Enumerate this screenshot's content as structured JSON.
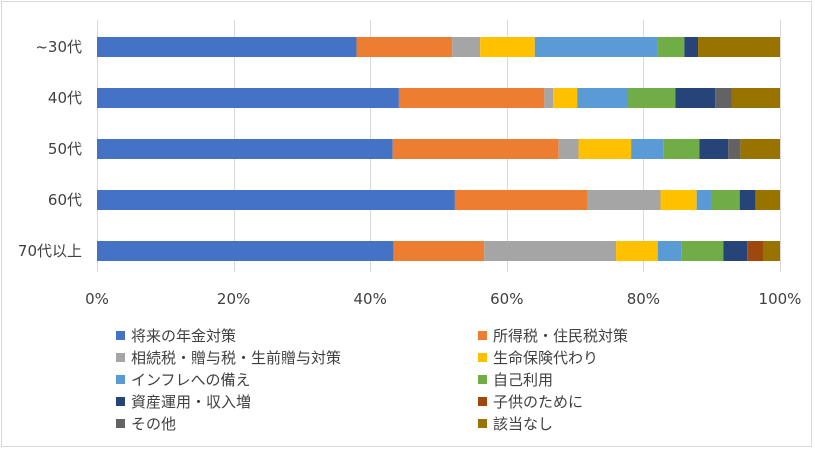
{
  "chart_data": {
    "type": "bar",
    "orientation": "horizontal",
    "stacked": "percent",
    "categories": [
      "~30代",
      "40代",
      "50代",
      "60代",
      "70代以上"
    ],
    "xlim": [
      0,
      100
    ],
    "x_ticks": [
      "0%",
      "20%",
      "40%",
      "60%",
      "80%",
      "100%"
    ],
    "grid": "vertical",
    "legend_position": "bottom",
    "series": [
      {
        "name": "将来の年金対策",
        "color": "#4472C4",
        "values": [
          38,
          44.2,
          43.3,
          52.4,
          43.4
        ]
      },
      {
        "name": "所得税・住民税対策",
        "color": "#ED7D31",
        "values": [
          14,
          21.3,
          24.3,
          19.4,
          13.3
        ]
      },
      {
        "name": "相続税・贈与税・生前贈与対策",
        "color": "#A5A5A5",
        "values": [
          4.1,
          1.3,
          2.9,
          10.7,
          19.3
        ]
      },
      {
        "name": "生命保険代わり",
        "color": "#FFC000",
        "values": [
          8,
          3.5,
          7.7,
          5.3,
          6.1
        ]
      },
      {
        "name": "インフレへの備え",
        "color": "#5B9BD5",
        "values": [
          17.9,
          7.3,
          4.7,
          2.1,
          3.5
        ]
      },
      {
        "name": "自己利用",
        "color": "#70AD47",
        "values": [
          4,
          7.1,
          5.3,
          4.2,
          6.1
        ]
      },
      {
        "name": "資産運用・収入増",
        "color": "#264478",
        "values": [
          2,
          5.8,
          4.2,
          2.3,
          3.5
        ]
      },
      {
        "name": "子供のために",
        "color": "#9E480E",
        "values": [
          0,
          0,
          0,
          0,
          2.4
        ]
      },
      {
        "name": "その他",
        "color": "#636363",
        "values": [
          0,
          2.4,
          1.8,
          0,
          0
        ]
      },
      {
        "name": "該当なし",
        "color": "#997300",
        "values": [
          12,
          7.1,
          5.8,
          3.6,
          2.4
        ]
      }
    ]
  }
}
